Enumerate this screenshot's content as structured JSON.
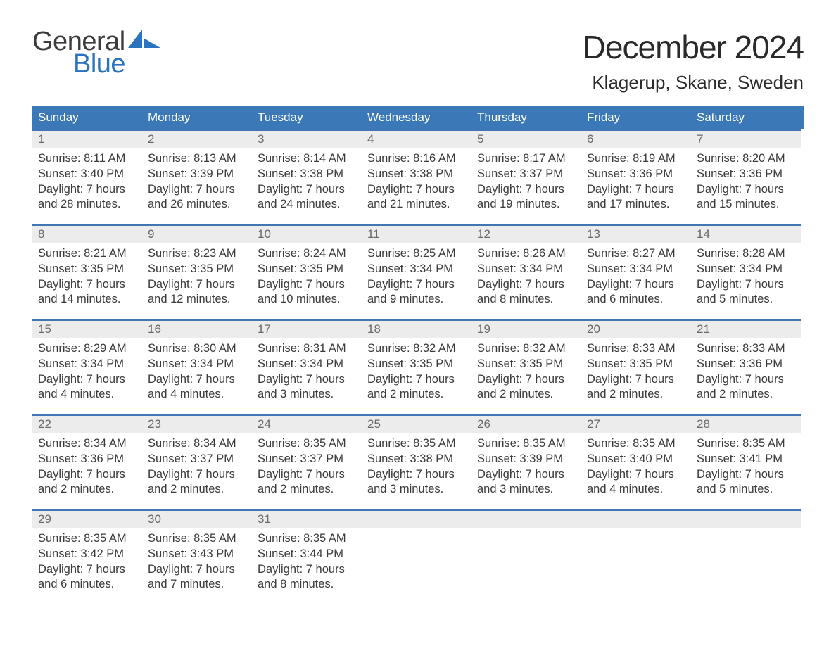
{
  "brand": {
    "word1": "General",
    "word2": "Blue",
    "text_color": "#3b3b3b",
    "accent_color": "#2a73c0"
  },
  "title": {
    "month": "December 2024",
    "location": "Klagerup, Skane, Sweden"
  },
  "colors": {
    "header_bg": "#3b78b8",
    "row_border": "#4275b3",
    "daynum_bg": "#ececec",
    "daynum_text": "#6a6a6a",
    "body_text": "#3b3b3b",
    "background": "#ffffff"
  },
  "fonts": {
    "title_size": 46,
    "location_size": 26,
    "header_size": 17,
    "daynum_size": 17,
    "body_size": 16.5
  },
  "day_headers": [
    "Sunday",
    "Monday",
    "Tuesday",
    "Wednesday",
    "Thursday",
    "Friday",
    "Saturday"
  ],
  "weeks": [
    [
      {
        "n": "1",
        "sr": "Sunrise: 8:11 AM",
        "ss": "Sunset: 3:40 PM",
        "d1": "Daylight: 7 hours",
        "d2": "and 28 minutes."
      },
      {
        "n": "2",
        "sr": "Sunrise: 8:13 AM",
        "ss": "Sunset: 3:39 PM",
        "d1": "Daylight: 7 hours",
        "d2": "and 26 minutes."
      },
      {
        "n": "3",
        "sr": "Sunrise: 8:14 AM",
        "ss": "Sunset: 3:38 PM",
        "d1": "Daylight: 7 hours",
        "d2": "and 24 minutes."
      },
      {
        "n": "4",
        "sr": "Sunrise: 8:16 AM",
        "ss": "Sunset: 3:38 PM",
        "d1": "Daylight: 7 hours",
        "d2": "and 21 minutes."
      },
      {
        "n": "5",
        "sr": "Sunrise: 8:17 AM",
        "ss": "Sunset: 3:37 PM",
        "d1": "Daylight: 7 hours",
        "d2": "and 19 minutes."
      },
      {
        "n": "6",
        "sr": "Sunrise: 8:19 AM",
        "ss": "Sunset: 3:36 PM",
        "d1": "Daylight: 7 hours",
        "d2": "and 17 minutes."
      },
      {
        "n": "7",
        "sr": "Sunrise: 8:20 AM",
        "ss": "Sunset: 3:36 PM",
        "d1": "Daylight: 7 hours",
        "d2": "and 15 minutes."
      }
    ],
    [
      {
        "n": "8",
        "sr": "Sunrise: 8:21 AM",
        "ss": "Sunset: 3:35 PM",
        "d1": "Daylight: 7 hours",
        "d2": "and 14 minutes."
      },
      {
        "n": "9",
        "sr": "Sunrise: 8:23 AM",
        "ss": "Sunset: 3:35 PM",
        "d1": "Daylight: 7 hours",
        "d2": "and 12 minutes."
      },
      {
        "n": "10",
        "sr": "Sunrise: 8:24 AM",
        "ss": "Sunset: 3:35 PM",
        "d1": "Daylight: 7 hours",
        "d2": "and 10 minutes."
      },
      {
        "n": "11",
        "sr": "Sunrise: 8:25 AM",
        "ss": "Sunset: 3:34 PM",
        "d1": "Daylight: 7 hours",
        "d2": "and 9 minutes."
      },
      {
        "n": "12",
        "sr": "Sunrise: 8:26 AM",
        "ss": "Sunset: 3:34 PM",
        "d1": "Daylight: 7 hours",
        "d2": "and 8 minutes."
      },
      {
        "n": "13",
        "sr": "Sunrise: 8:27 AM",
        "ss": "Sunset: 3:34 PM",
        "d1": "Daylight: 7 hours",
        "d2": "and 6 minutes."
      },
      {
        "n": "14",
        "sr": "Sunrise: 8:28 AM",
        "ss": "Sunset: 3:34 PM",
        "d1": "Daylight: 7 hours",
        "d2": "and 5 minutes."
      }
    ],
    [
      {
        "n": "15",
        "sr": "Sunrise: 8:29 AM",
        "ss": "Sunset: 3:34 PM",
        "d1": "Daylight: 7 hours",
        "d2": "and 4 minutes."
      },
      {
        "n": "16",
        "sr": "Sunrise: 8:30 AM",
        "ss": "Sunset: 3:34 PM",
        "d1": "Daylight: 7 hours",
        "d2": "and 4 minutes."
      },
      {
        "n": "17",
        "sr": "Sunrise: 8:31 AM",
        "ss": "Sunset: 3:34 PM",
        "d1": "Daylight: 7 hours",
        "d2": "and 3 minutes."
      },
      {
        "n": "18",
        "sr": "Sunrise: 8:32 AM",
        "ss": "Sunset: 3:35 PM",
        "d1": "Daylight: 7 hours",
        "d2": "and 2 minutes."
      },
      {
        "n": "19",
        "sr": "Sunrise: 8:32 AM",
        "ss": "Sunset: 3:35 PM",
        "d1": "Daylight: 7 hours",
        "d2": "and 2 minutes."
      },
      {
        "n": "20",
        "sr": "Sunrise: 8:33 AM",
        "ss": "Sunset: 3:35 PM",
        "d1": "Daylight: 7 hours",
        "d2": "and 2 minutes."
      },
      {
        "n": "21",
        "sr": "Sunrise: 8:33 AM",
        "ss": "Sunset: 3:36 PM",
        "d1": "Daylight: 7 hours",
        "d2": "and 2 minutes."
      }
    ],
    [
      {
        "n": "22",
        "sr": "Sunrise: 8:34 AM",
        "ss": "Sunset: 3:36 PM",
        "d1": "Daylight: 7 hours",
        "d2": "and 2 minutes."
      },
      {
        "n": "23",
        "sr": "Sunrise: 8:34 AM",
        "ss": "Sunset: 3:37 PM",
        "d1": "Daylight: 7 hours",
        "d2": "and 2 minutes."
      },
      {
        "n": "24",
        "sr": "Sunrise: 8:35 AM",
        "ss": "Sunset: 3:37 PM",
        "d1": "Daylight: 7 hours",
        "d2": "and 2 minutes."
      },
      {
        "n": "25",
        "sr": "Sunrise: 8:35 AM",
        "ss": "Sunset: 3:38 PM",
        "d1": "Daylight: 7 hours",
        "d2": "and 3 minutes."
      },
      {
        "n": "26",
        "sr": "Sunrise: 8:35 AM",
        "ss": "Sunset: 3:39 PM",
        "d1": "Daylight: 7 hours",
        "d2": "and 3 minutes."
      },
      {
        "n": "27",
        "sr": "Sunrise: 8:35 AM",
        "ss": "Sunset: 3:40 PM",
        "d1": "Daylight: 7 hours",
        "d2": "and 4 minutes."
      },
      {
        "n": "28",
        "sr": "Sunrise: 8:35 AM",
        "ss": "Sunset: 3:41 PM",
        "d1": "Daylight: 7 hours",
        "d2": "and 5 minutes."
      }
    ],
    [
      {
        "n": "29",
        "sr": "Sunrise: 8:35 AM",
        "ss": "Sunset: 3:42 PM",
        "d1": "Daylight: 7 hours",
        "d2": "and 6 minutes."
      },
      {
        "n": "30",
        "sr": "Sunrise: 8:35 AM",
        "ss": "Sunset: 3:43 PM",
        "d1": "Daylight: 7 hours",
        "d2": "and 7 minutes."
      },
      {
        "n": "31",
        "sr": "Sunrise: 8:35 AM",
        "ss": "Sunset: 3:44 PM",
        "d1": "Daylight: 7 hours",
        "d2": "and 8 minutes."
      },
      null,
      null,
      null,
      null
    ]
  ]
}
